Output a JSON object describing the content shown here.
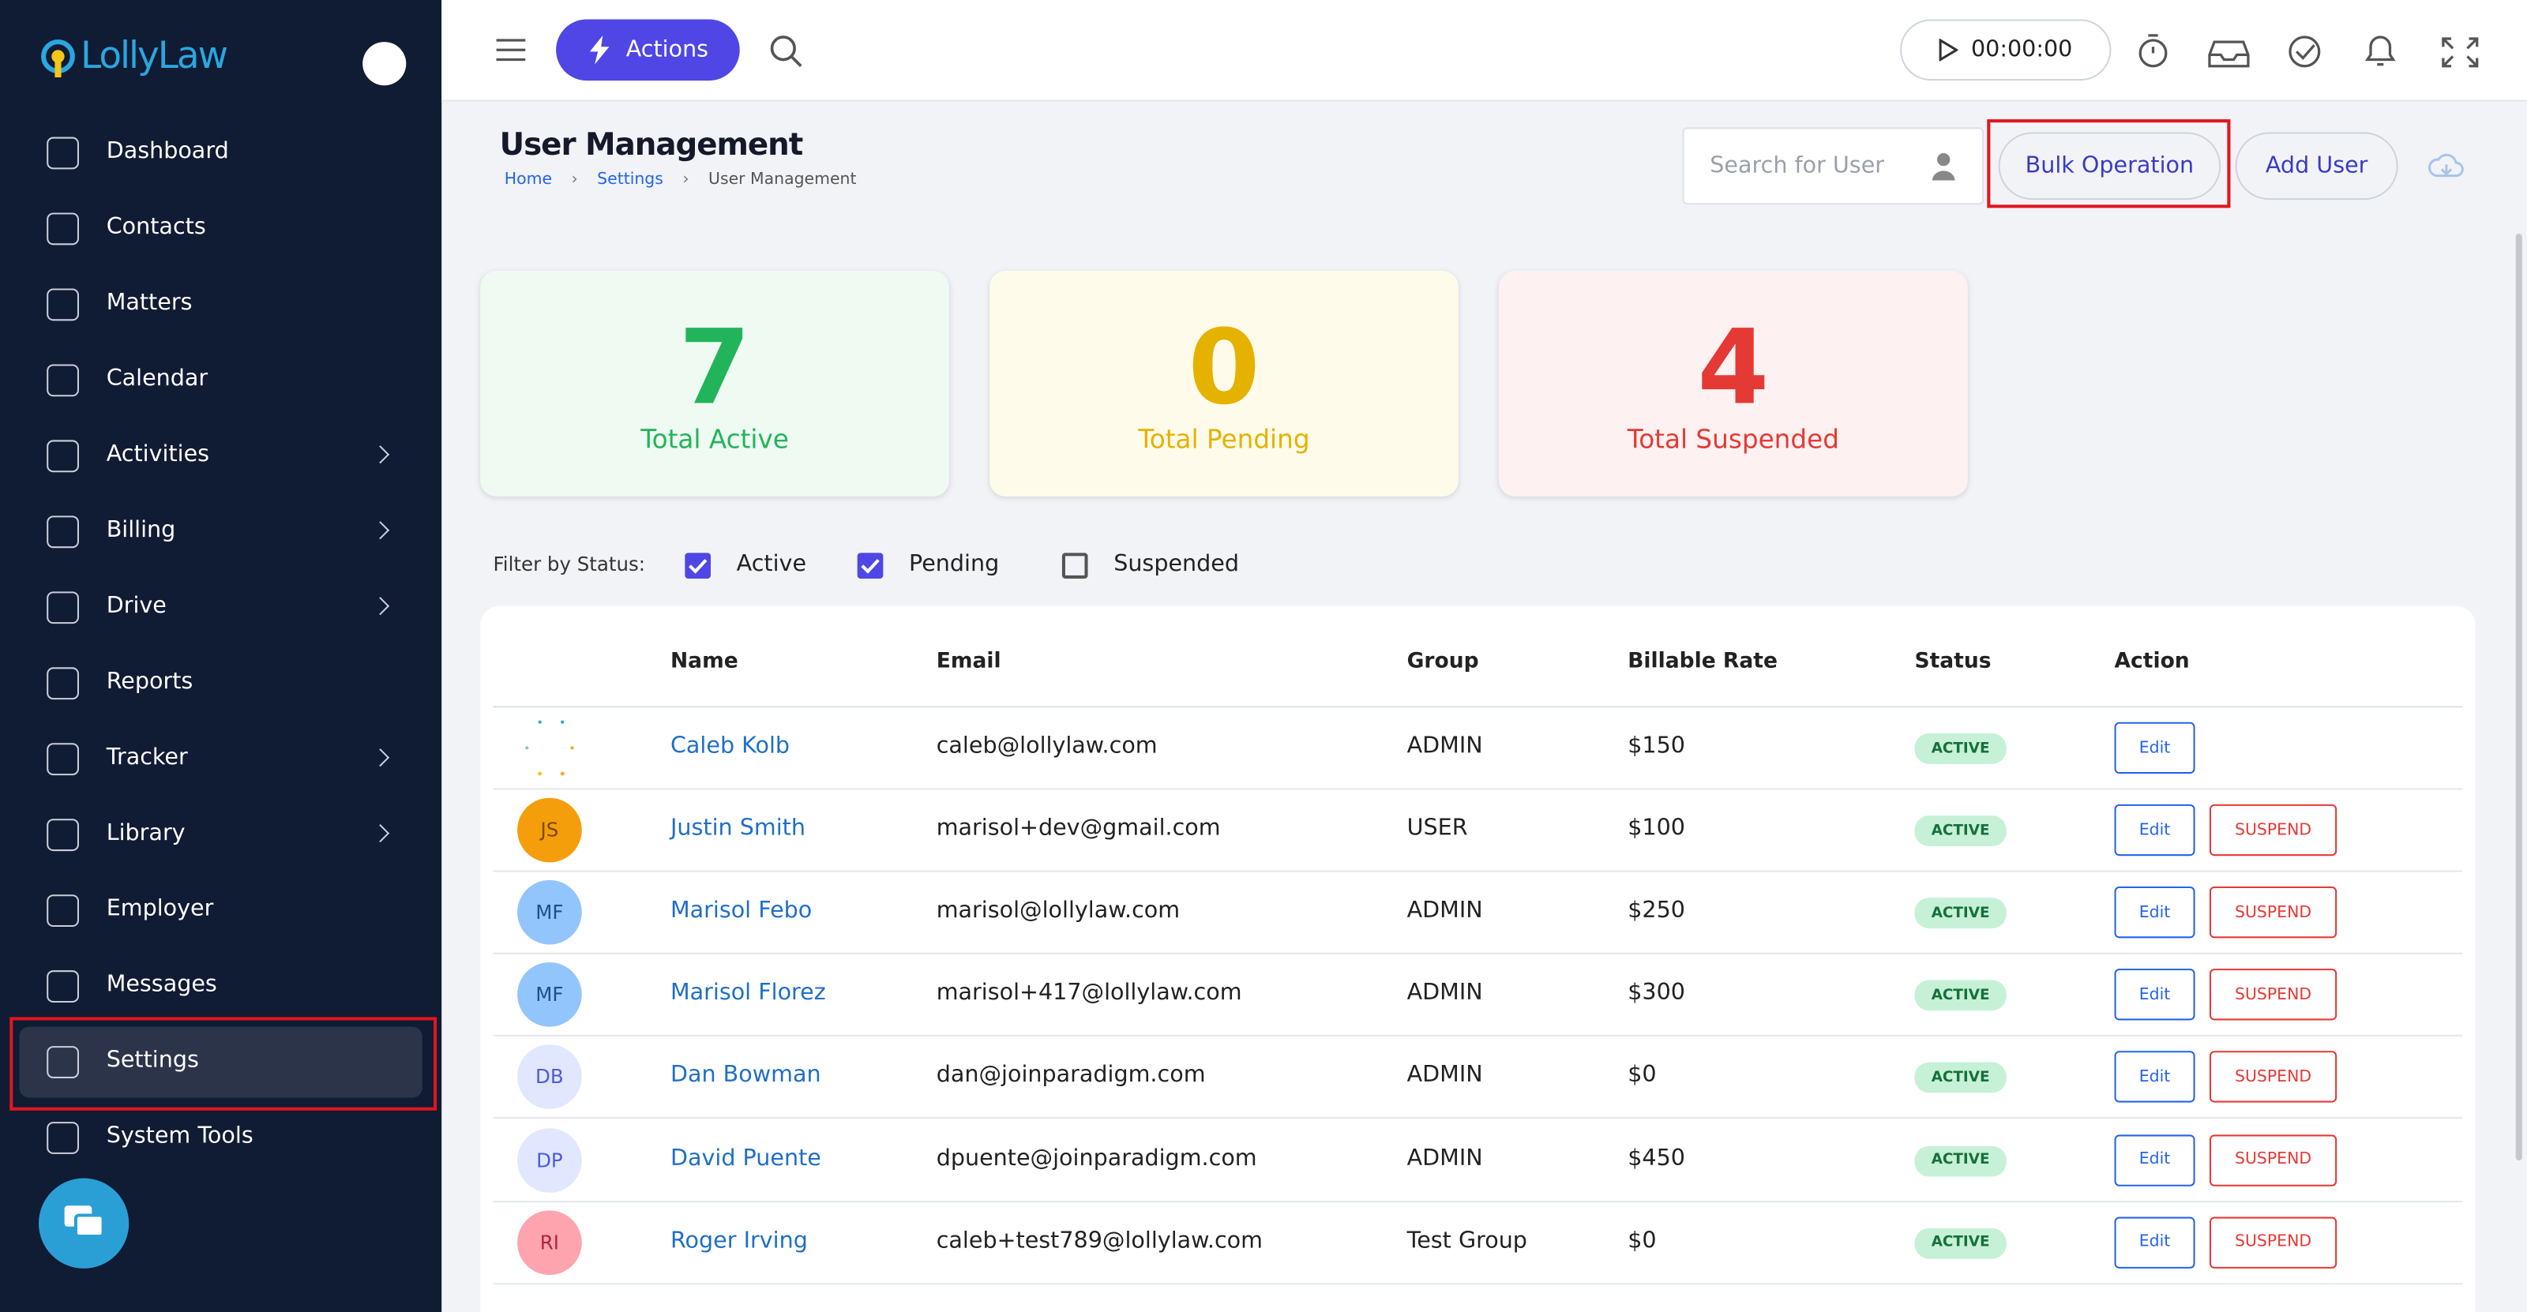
{
  "sidebar": {
    "logo": "LollyLaw",
    "items": [
      {
        "label": "Dashboard",
        "submenu": false
      },
      {
        "label": "Contacts",
        "submenu": false
      },
      {
        "label": "Matters",
        "submenu": false
      },
      {
        "label": "Calendar",
        "submenu": false
      },
      {
        "label": "Activities",
        "submenu": true
      },
      {
        "label": "Billing",
        "submenu": true
      },
      {
        "label": "Drive",
        "submenu": true
      },
      {
        "label": "Reports",
        "submenu": false
      },
      {
        "label": "Tracker",
        "submenu": true
      },
      {
        "label": "Library",
        "submenu": true
      },
      {
        "label": "Employer",
        "submenu": false
      },
      {
        "label": "Messages",
        "submenu": false
      },
      {
        "label": "Settings",
        "submenu": false,
        "active": true
      },
      {
        "label": "System Tools",
        "submenu": false
      }
    ]
  },
  "topbar": {
    "actions_button": "Actions",
    "timer": "00:00:00"
  },
  "page": {
    "title": "User Management",
    "breadcrumb": [
      "Home",
      "Settings",
      "User Management"
    ],
    "search_placeholder": "Search for User",
    "bulk_button": "Bulk Operation",
    "add_button": "Add User"
  },
  "stats": [
    {
      "value": 7,
      "label": "Total Active",
      "color": "#22b45a",
      "bg": "#eefaf2"
    },
    {
      "value": 0,
      "label": "Total Pending",
      "color": "#e5b200",
      "bg": "#fefbea"
    },
    {
      "value": 4,
      "label": "Total Suspended",
      "color": "#e53935",
      "bg": "#fdf1f1"
    }
  ],
  "filter": {
    "label": "Filter by Status:",
    "options": [
      {
        "label": "Active",
        "checked": true
      },
      {
        "label": "Pending",
        "checked": true
      },
      {
        "label": "Suspended",
        "checked": false
      }
    ]
  },
  "table": {
    "columns": [
      "Name",
      "Email",
      "Group",
      "Billable Rate",
      "Status",
      "Action"
    ],
    "rows": [
      {
        "name": "Caleb Kolb",
        "email": "caleb@lollylaw.com",
        "group": "ADMIN",
        "rate": "$150",
        "status": "ACTIVE",
        "actions": [
          "Edit"
        ]
      },
      {
        "initials": "JS",
        "avatar_bg": "#f59e0b",
        "avatar_fg": "#7c4a03",
        "name": "Justin Smith",
        "email": "marisol+dev@gmail.com",
        "group": "USER",
        "rate": "$100",
        "status": "ACTIVE",
        "actions": [
          "Edit",
          "SUSPEND"
        ]
      },
      {
        "initials": "MF",
        "avatar_bg": "#93c5fd",
        "avatar_fg": "#1e4e8c",
        "name": "Marisol Febo",
        "email": "marisol@lollylaw.com",
        "group": "ADMIN",
        "rate": "$250",
        "status": "ACTIVE",
        "actions": [
          "Edit",
          "SUSPEND"
        ]
      },
      {
        "initials": "MF",
        "avatar_bg": "#93c5fd",
        "avatar_fg": "#1e4e8c",
        "name": "Marisol Florez",
        "email": "marisol+417@lollylaw.com",
        "group": "ADMIN",
        "rate": "$300",
        "status": "ACTIVE",
        "actions": [
          "Edit",
          "SUSPEND"
        ]
      },
      {
        "initials": "DB",
        "avatar_bg": "#e0e7ff",
        "avatar_fg": "#4f5bd5",
        "name": "Dan Bowman",
        "email": "dan@joinparadigm.com",
        "group": "ADMIN",
        "rate": "$0",
        "status": "ACTIVE",
        "actions": [
          "Edit",
          "SUSPEND"
        ]
      },
      {
        "initials": "DP",
        "avatar_bg": "#e0e7ff",
        "avatar_fg": "#4f5bd5",
        "name": "David Puente",
        "email": "dpuente@joinparadigm.com",
        "group": "ADMIN",
        "rate": "$450",
        "status": "ACTIVE",
        "actions": [
          "Edit",
          "SUSPEND"
        ]
      },
      {
        "initials": "RI",
        "avatar_bg": "#fda4af",
        "avatar_fg": "#b4233a",
        "name": "Roger Irving",
        "email": "caleb+test789@lollylaw.com",
        "group": "Test Group",
        "rate": "$0",
        "status": "ACTIVE",
        "actions": [
          "Edit",
          "SUSPEND"
        ]
      }
    ]
  }
}
